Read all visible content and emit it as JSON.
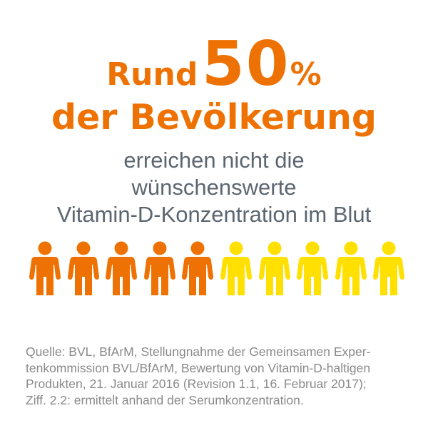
{
  "headline": {
    "prefix": "Rund",
    "number": "50",
    "unit": "%",
    "line2": "der Bevölkerung"
  },
  "subtitle": {
    "lines": [
      "erreichen nicht die",
      "wünschenswerte",
      "Vitamin-D-Konzentration im Blut"
    ]
  },
  "people": {
    "total": 10,
    "highlighted": 5,
    "highlight_color": "#EE7203",
    "other_color": "#FFE000",
    "icon": "person-icon"
  },
  "source": {
    "lines": [
      "Quelle: BVL, BfArM, Stellungnahme der Gemeinsamen Exper-",
      "tenkommission BVL/BfArM, Bewertung von Vitamin-D-haltigen",
      "Produkten, 21. Januar 2016 (Revision 1.1, 16. Februar 2017);",
      "Ziff. 2.2: ermittelt anhand der Serumkonzentration."
    ]
  },
  "colors": {
    "accent": "#EE7203",
    "text_gray": "#5C6670",
    "source_gray": "#8A8A8A"
  }
}
